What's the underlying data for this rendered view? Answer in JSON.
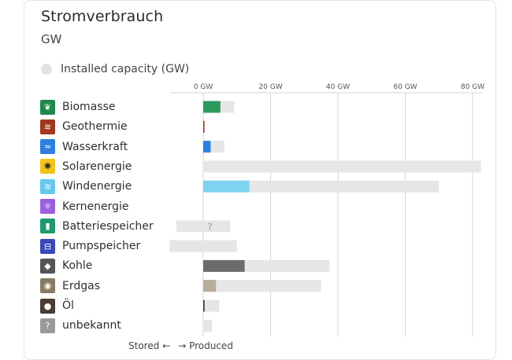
{
  "card": {
    "title": "Stromverbrauch",
    "unit": "GW",
    "legend_label": "Installed capacity (GW)"
  },
  "footer": {
    "stored": "Stored ←",
    "produced": "→ Produced"
  },
  "colors": {
    "capacity": "#e6e6e6",
    "grid": "#d6d6d6",
    "axis_text": "#555555"
  },
  "sources": [
    {
      "label": "Biomasse",
      "icon": "sprout-icon",
      "icon_color": "#1f8a4c"
    },
    {
      "label": "Geothermie",
      "icon": "heat-waves-icon",
      "icon_color": "#a0391f"
    },
    {
      "label": "Wasserkraft",
      "icon": "water-waves-icon",
      "icon_color": "#2d7fe0"
    },
    {
      "label": "Solarenergie",
      "icon": "sun-icon",
      "icon_color": "#f2c21a"
    },
    {
      "label": "Windenergie",
      "icon": "wind-icon",
      "icon_color": "#67c8ee"
    },
    {
      "label": "Kernenergie",
      "icon": "atom-icon",
      "icon_color": "#9b5fe0"
    },
    {
      "label": "Batteriespeicher",
      "icon": "battery-icon",
      "icon_color": "#1f9a6e"
    },
    {
      "label": "Pumpspeicher",
      "icon": "pump-icon",
      "icon_color": "#3a48b8"
    },
    {
      "label": "Kohle",
      "icon": "coal-icon",
      "icon_color": "#555555"
    },
    {
      "label": "Erdgas",
      "icon": "gas-flame-icon",
      "icon_color": "#8a7a64"
    },
    {
      "label": "Öl",
      "icon": "oil-drop-icon",
      "icon_color": "#4a3b33"
    },
    {
      "label": "unbekannt",
      "icon": "question-icon",
      "icon_color": "#9a9a9a"
    }
  ],
  "chart_data": {
    "type": "bar",
    "orientation": "horizontal",
    "x_ticks": [
      "0 GW",
      "20 GW",
      "40 GW",
      "60 GW",
      "80 GW"
    ],
    "xlim": [
      -10,
      82
    ],
    "grid": true,
    "categories": [
      "Biomasse",
      "Geothermie",
      "Wasserkraft",
      "Solarenergie",
      "Windenergie",
      "Kernenergie",
      "Batteriespeicher",
      "Pumpspeicher",
      "Kohle",
      "Erdgas",
      "Öl",
      "unbekannt"
    ],
    "series": [
      {
        "name": "Installed capacity (GW)",
        "color": "#e6e6e6",
        "values": [
          [
            0,
            9.2
          ],
          [
            0,
            0.1
          ],
          [
            0,
            6.3
          ],
          [
            0,
            82.5
          ],
          [
            0,
            70.0
          ],
          [
            0,
            0
          ],
          [
            -8.0,
            8.0
          ],
          [
            -10.0,
            10.0
          ],
          [
            0,
            37.5
          ],
          [
            0,
            35.0
          ],
          [
            0,
            4.8
          ],
          [
            0,
            2.6
          ]
        ]
      },
      {
        "name": "Produced",
        "values": [
          5.1,
          0.05,
          2.2,
          0,
          13.7,
          0,
          0,
          0,
          12.3,
          3.8,
          0.4,
          0
        ],
        "colors": [
          "#2e9a5e",
          "#a0391f",
          "#2d7fe0",
          "#f2c21a",
          "#7ed3f0",
          "#9b5fe0",
          "#1f9a6e",
          "#3a48b8",
          "#6b6b6b",
          "#b8ad9c",
          "#4a3b33",
          "#9a9a9a"
        ]
      }
    ],
    "annotations": [
      {
        "category": "Batteriespeicher",
        "text": "?"
      }
    ]
  }
}
